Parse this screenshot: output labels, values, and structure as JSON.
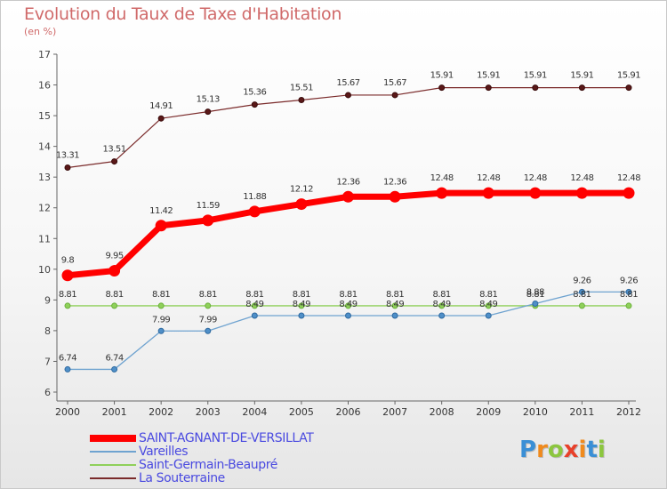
{
  "header": {
    "title": "Evolution du Taux de Taxe d'Habitation",
    "subtitle": "(en %)"
  },
  "logo": {
    "text": "Proxiti",
    "letters": [
      "P",
      "r",
      "o",
      "x",
      "i",
      "t",
      "i"
    ]
  },
  "chart_data": {
    "type": "line",
    "title": "Evolution du Taux de Taxe d'Habitation",
    "ylabel": "(en %)",
    "xlabel": "",
    "ylim": [
      6,
      17
    ],
    "yticks": [
      6,
      7,
      8,
      9,
      10,
      11,
      12,
      13,
      14,
      15,
      16,
      17
    ],
    "categories": [
      "2000",
      "2001",
      "2002",
      "2003",
      "2004",
      "2005",
      "2006",
      "2007",
      "2008",
      "2009",
      "2010",
      "2011",
      "2012"
    ],
    "grid": false,
    "legend_position": "bottom-left",
    "series": [
      {
        "name": "SAINT-AGNANT-DE-VERSILLAT",
        "color": "#ff0000",
        "values": [
          9.8,
          9.95,
          11.42,
          11.59,
          11.88,
          12.12,
          12.36,
          12.36,
          12.48,
          12.48,
          12.48,
          12.48,
          12.48
        ],
        "labels": [
          "9.8",
          "9.95",
          "11.42",
          "11.59",
          "11.88",
          "12.12",
          "12.36",
          "12.36",
          "12.48",
          "12.48",
          "12.48",
          "12.48",
          "12.48"
        ]
      },
      {
        "name": "Vareilles",
        "color": "#6fa3d0",
        "values": [
          6.74,
          6.74,
          7.99,
          7.99,
          8.49,
          8.49,
          8.49,
          8.49,
          8.49,
          8.49,
          8.88,
          9.26,
          9.26
        ],
        "labels": [
          "6.74",
          "6.74",
          "7.99",
          "7.99",
          "8.49",
          "8.49",
          "8.49",
          "8.49",
          "8.49",
          "8.49",
          "8.88",
          "9.26",
          "9.26"
        ]
      },
      {
        "name": "Saint-Germain-Beaupré",
        "color": "#8fd05a",
        "values": [
          8.81,
          8.81,
          8.81,
          8.81,
          8.81,
          8.81,
          8.81,
          8.81,
          8.81,
          8.81,
          8.81,
          8.81,
          8.81
        ],
        "labels": [
          "8.81",
          "8.81",
          "8.81",
          "8.81",
          "8.81",
          "8.81",
          "8.81",
          "8.81",
          "8.81",
          "8.81",
          "8.81",
          "8.81",
          "8.81"
        ]
      },
      {
        "name": "La Souterraine",
        "color": "#7a2a2a",
        "values": [
          13.31,
          13.51,
          14.91,
          15.13,
          15.36,
          15.51,
          15.67,
          15.67,
          15.91,
          15.91,
          15.91,
          15.91,
          15.91
        ],
        "labels": [
          "13.31",
          "13.51",
          "14.91",
          "15.13",
          "15.36",
          "15.51",
          "15.67",
          "15.67",
          "15.91",
          "15.91",
          "15.91",
          "15.91",
          "15.91"
        ]
      }
    ]
  }
}
